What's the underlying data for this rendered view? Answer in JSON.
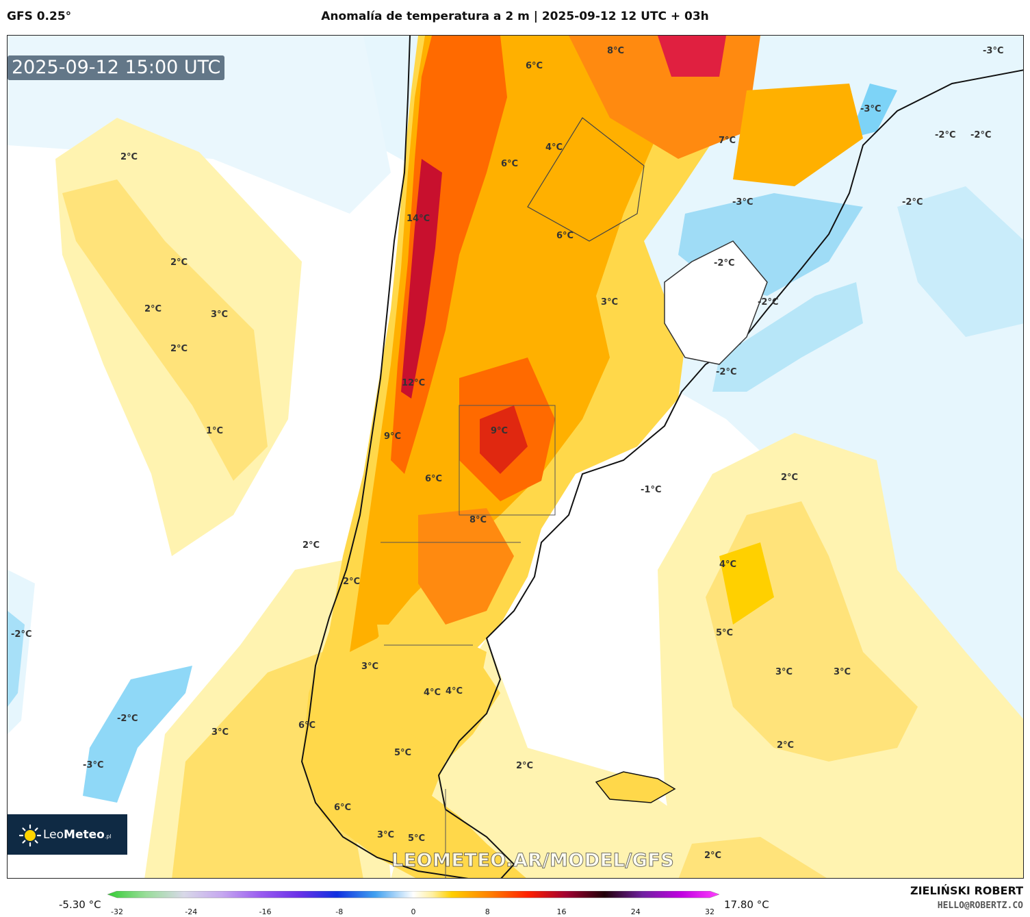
{
  "header": {
    "model": "GFS 0.25°",
    "title": "Anomalía de temperatura a 2 m | 2025-09-12 12 UTC + 03h"
  },
  "timestamp": "2025-09-12 15:00 UTC",
  "watermark": "LEOMETEO.AR/MODEL/GFS",
  "logo": {
    "name_light": "Leo",
    "name_bold": "Meteo",
    "suffix": ".pl"
  },
  "map_labels": [
    "8°C",
    "6°C",
    "-3°C",
    "-3°C",
    "7°C",
    "4°C",
    "6°C",
    "2°C",
    "-2°C",
    "-2°C",
    "-3°C",
    "-2°C",
    "14°C",
    "6°C",
    "3°C",
    "-2°C",
    "2°C",
    "3°C",
    "-2°C",
    "2°C",
    "2°C",
    "-2°C",
    "12°C",
    "9°C",
    "1°C",
    "9°C",
    "6°C",
    "-1°C",
    "2°C",
    "8°C",
    "2°C",
    "4°C",
    "2°C",
    "5°C",
    "-2°C",
    "4°C",
    "3°C",
    "3°C",
    "3°C",
    "4°C",
    "-2°C",
    "6°C",
    "3°C",
    "2°C",
    "5°C",
    "2°C",
    "-3°C",
    "3°C",
    "6°C",
    "5°C",
    "2°C"
  ],
  "colorbar": {
    "min_label": "-5.30 °C",
    "max_label": "17.80 °C",
    "ticks": [
      "-32",
      "-24",
      "-16",
      "-8",
      "0",
      "8",
      "16",
      "24",
      "32"
    ],
    "stops": [
      [
        "-32",
        "#33cc33"
      ],
      [
        "-28",
        "#99dd99"
      ],
      [
        "-24",
        "#d8d8e8"
      ],
      [
        "-20",
        "#c6a8f0"
      ],
      [
        "-16",
        "#9a5cf0"
      ],
      [
        "-12",
        "#6a30e8"
      ],
      [
        "-8",
        "#1030e0"
      ],
      [
        "-4",
        "#40a0f0"
      ],
      [
        "0",
        "#ffffff"
      ],
      [
        "2",
        "#fff0a0"
      ],
      [
        "4",
        "#ffd000"
      ],
      [
        "8",
        "#ff8000"
      ],
      [
        "12",
        "#ff2000"
      ],
      [
        "16",
        "#a00030"
      ],
      [
        "20",
        "#200008"
      ],
      [
        "24",
        "#7020a0"
      ],
      [
        "28",
        "#c000e0"
      ],
      [
        "32",
        "#ff40ff"
      ]
    ]
  },
  "colors": {
    "very_warm": "#c8102e",
    "warm": "#ff6a00",
    "mild": "#ffb000",
    "slight": "#ffd84a",
    "pale": "#fff3b0",
    "neutral": "#ffffff",
    "cool": "#d8f0fb",
    "cold": "#7dd3f7"
  },
  "credits": {
    "author": "ZIELIŃSKI ROBERT",
    "email": "HELLO@ROBERTZ.CO"
  }
}
